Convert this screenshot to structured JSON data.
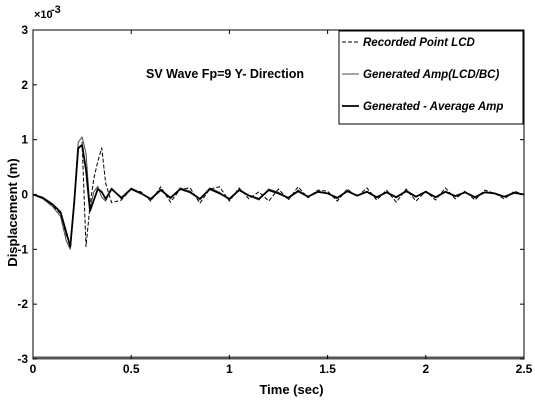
{
  "chart_data": {
    "type": "line",
    "annotation": "SV Wave Fp=9  Y- Direction",
    "xlabel": "Time (sec)",
    "ylabel": "Displacement (m)",
    "y_exponent_base": "×10",
    "y_exponent_power": "-3",
    "xlim": [
      0,
      2.5
    ],
    "ylim": [
      -3,
      3
    ],
    "x_ticks": [
      {
        "value": 0,
        "label": "0"
      },
      {
        "value": 0.5,
        "label": "0.5"
      },
      {
        "value": 1,
        "label": "1"
      },
      {
        "value": 1.5,
        "label": "1.5"
      },
      {
        "value": 2,
        "label": "2"
      },
      {
        "value": 2.5,
        "label": "2.5"
      }
    ],
    "y_ticks": [
      {
        "value": -3,
        "label": "-3"
      },
      {
        "value": -2,
        "label": "-2"
      },
      {
        "value": -1,
        "label": "-1"
      },
      {
        "value": 0,
        "label": "0"
      },
      {
        "value": 1,
        "label": "1"
      },
      {
        "value": 2,
        "label": "2"
      },
      {
        "value": 3,
        "label": "3"
      }
    ],
    "grid": false,
    "legend_position": "top-right",
    "series": [
      {
        "name": "Recorded Point LCD",
        "style": "dashed",
        "color": "#000000",
        "x": [
          0,
          0.05,
          0.1,
          0.14,
          0.17,
          0.19,
          0.21,
          0.23,
          0.25,
          0.27,
          0.29,
          0.31,
          0.33,
          0.35,
          0.37,
          0.4,
          0.45,
          0.5,
          0.55,
          0.6,
          0.65,
          0.7,
          0.75,
          0.8,
          0.85,
          0.9,
          0.95,
          1.0,
          1.05,
          1.1,
          1.15,
          1.2,
          1.25,
          1.3,
          1.35,
          1.4,
          1.45,
          1.5,
          1.55,
          1.6,
          1.65,
          1.7,
          1.75,
          1.8,
          1.85,
          1.9,
          1.95,
          2.0,
          2.05,
          2.1,
          2.15,
          2.2,
          2.25,
          2.3,
          2.35,
          2.4,
          2.45,
          2.5
        ],
        "y": [
          0,
          -0.05,
          -0.2,
          -0.35,
          -0.75,
          -0.9,
          -0.1,
          0.8,
          0.95,
          -0.95,
          -0.2,
          0.3,
          0.6,
          0.85,
          0.2,
          -0.15,
          -0.1,
          0.1,
          0.05,
          -0.12,
          0.14,
          -0.14,
          0.1,
          0.12,
          -0.16,
          0.1,
          0.14,
          -0.12,
          0.12,
          -0.08,
          0.05,
          -0.12,
          0.1,
          -0.1,
          0.14,
          -0.06,
          0.08,
          0.06,
          -0.12,
          0.1,
          -0.04,
          0.12,
          -0.1,
          0.08,
          -0.14,
          0.1,
          -0.12,
          0.06,
          -0.1,
          0.12,
          -0.08,
          0.06,
          -0.1,
          0.08,
          0.02,
          -0.08,
          0.06,
          0
        ]
      },
      {
        "name": "Generated Amp(LCD/BC)",
        "style": "thin",
        "color": "#4a4a4a",
        "x": [
          0,
          0.05,
          0.1,
          0.14,
          0.17,
          0.19,
          0.21,
          0.23,
          0.25,
          0.27,
          0.29,
          0.31,
          0.33,
          0.35,
          0.37,
          0.4,
          0.45,
          0.5,
          0.55,
          0.6,
          0.65,
          0.7,
          0.75,
          0.8,
          0.85,
          0.9,
          0.95,
          1.0,
          1.05,
          1.1,
          1.15,
          1.2,
          1.25,
          1.3,
          1.35,
          1.4,
          1.45,
          1.5,
          1.55,
          1.6,
          1.65,
          1.7,
          1.75,
          1.8,
          1.85,
          1.9,
          1.95,
          2.0,
          2.05,
          2.1,
          2.15,
          2.2,
          2.25,
          2.3,
          2.35,
          2.4,
          2.45,
          2.5
        ],
        "y": [
          0,
          -0.08,
          -0.22,
          -0.4,
          -0.85,
          -1.0,
          -0.1,
          0.95,
          1.05,
          0.75,
          -0.25,
          0.05,
          0.15,
          -0.05,
          -0.12,
          0.12,
          -0.08,
          0.12,
          0.03,
          -0.1,
          0.1,
          -0.08,
          0.12,
          0.06,
          -0.1,
          0.12,
          0.04,
          -0.1,
          0.1,
          -0.02,
          -0.1,
          0.1,
          0.04,
          -0.08,
          0.08,
          -0.04,
          0.06,
          0.02,
          -0.08,
          0.08,
          -0.02,
          0.06,
          -0.06,
          0.04,
          -0.06,
          0.08,
          -0.04,
          0.06,
          -0.06,
          0.06,
          -0.04,
          0.04,
          -0.06,
          0.04,
          0.02,
          -0.04,
          0.04,
          0
        ]
      },
      {
        "name": "Generated - Average Amp",
        "style": "thick",
        "color": "#000000",
        "x": [
          0,
          0.05,
          0.1,
          0.14,
          0.17,
          0.19,
          0.21,
          0.23,
          0.25,
          0.27,
          0.29,
          0.31,
          0.33,
          0.35,
          0.37,
          0.4,
          0.45,
          0.5,
          0.55,
          0.6,
          0.65,
          0.7,
          0.75,
          0.8,
          0.85,
          0.9,
          0.95,
          1.0,
          1.05,
          1.1,
          1.15,
          1.2,
          1.25,
          1.3,
          1.35,
          1.4,
          1.45,
          1.5,
          1.55,
          1.6,
          1.65,
          1.7,
          1.75,
          1.8,
          1.85,
          1.9,
          1.95,
          2.0,
          2.05,
          2.1,
          2.15,
          2.2,
          2.25,
          2.3,
          2.35,
          2.4,
          2.45,
          2.5
        ],
        "y": [
          0,
          -0.06,
          -0.18,
          -0.32,
          -0.7,
          -0.95,
          -0.15,
          0.85,
          0.9,
          0.45,
          -0.3,
          -0.1,
          0.1,
          0.05,
          -0.08,
          0.1,
          -0.06,
          0.1,
          0.02,
          -0.08,
          0.08,
          -0.06,
          0.1,
          0.04,
          -0.08,
          0.1,
          0.02,
          -0.08,
          0.08,
          -0.02,
          -0.08,
          0.08,
          0.02,
          -0.06,
          0.06,
          -0.04,
          0.05,
          0.02,
          -0.06,
          0.06,
          -0.02,
          0.05,
          -0.05,
          0.04,
          -0.05,
          0.06,
          -0.04,
          0.05,
          -0.05,
          0.05,
          -0.03,
          0.04,
          -0.05,
          0.04,
          0.02,
          -0.04,
          0.03,
          0
        ]
      }
    ]
  }
}
